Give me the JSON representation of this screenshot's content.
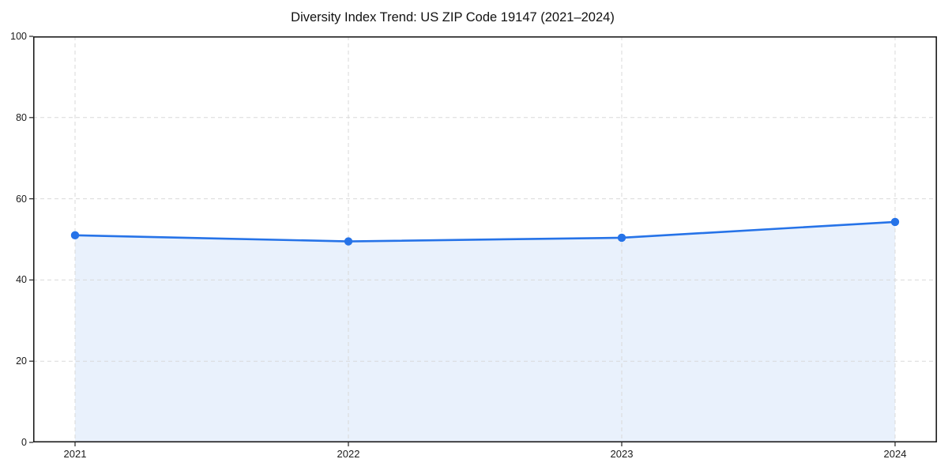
{
  "figure": {
    "title": "Diversity Index Trend: US ZIP Code 19147 (2021–2024)"
  },
  "chart_data": {
    "type": "line",
    "title": "Diversity Index Trend: US ZIP Code 19147 (2021–2024)",
    "x": [
      "2021",
      "2022",
      "2023",
      "2024"
    ],
    "series": [
      {
        "name": "Diversity Index",
        "values": [
          51.0,
          49.5,
          50.4,
          54.3
        ]
      }
    ],
    "xlabel": "",
    "ylabel": "",
    "ylim": [
      0,
      100
    ],
    "yticks": [
      0,
      20,
      40,
      60,
      80,
      100
    ],
    "grid": true,
    "grid_style": "dashed",
    "legend_position": "none",
    "area_fill": true,
    "marker": "circle",
    "colors": {
      "line": "#2673e8",
      "marker": "#2673e8",
      "area_fill": "#e9f1fc",
      "gridline": "#d9d9d9",
      "spine": "#1a1a1a",
      "tick": "#333333",
      "tick_label": "#1a1a1a",
      "background": "#ffffff"
    }
  }
}
